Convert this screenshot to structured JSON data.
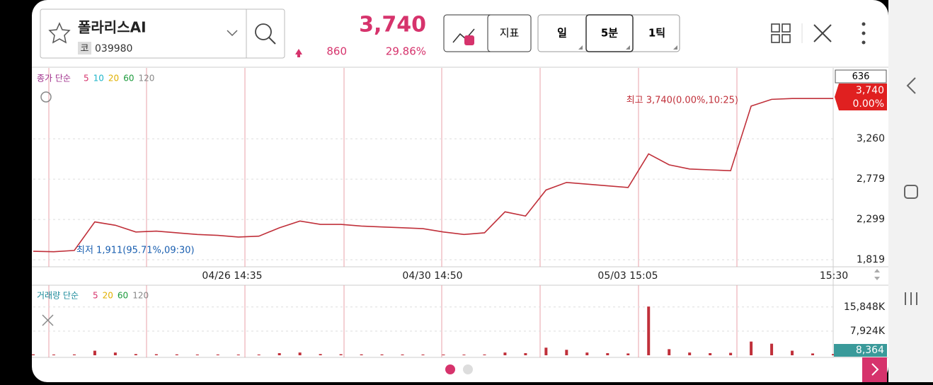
{
  "header": {
    "name": "폴라리스AI",
    "badge": "코",
    "code": "039980",
    "price": "3,740",
    "change": "860",
    "change_pct": "29.86%",
    "buttons": [
      "지표"
    ],
    "periods": [
      "일",
      "5분",
      "1틱"
    ]
  },
  "chart_data": {
    "type": "line",
    "legend_prefix": "종가 단순",
    "legend": [
      {
        "name": "5",
        "color": "#d6336c"
      },
      {
        "name": "10",
        "color": "#1fb5c9"
      },
      {
        "name": "20",
        "color": "#e0b000"
      },
      {
        "name": "60",
        "color": "#1a9a3a"
      },
      {
        "name": "120",
        "color": "#888888"
      }
    ],
    "values": [
      1920,
      1915,
      1930,
      2270,
      2230,
      2150,
      2160,
      2140,
      2120,
      2110,
      2090,
      2100,
      2200,
      2280,
      2240,
      2240,
      2220,
      2210,
      2200,
      2190,
      2150,
      2120,
      2140,
      2390,
      2340,
      2650,
      2740,
      2720,
      2700,
      2680,
      3080,
      2950,
      2900,
      2890,
      2880,
      3650,
      3730,
      3740,
      3740,
      3740
    ],
    "color": "#c0303a",
    "ylim": [
      1735,
      4104
    ],
    "yticks": [
      {
        "value": 3260,
        "label": "3,260"
      },
      {
        "value": 2779,
        "label": "2,779"
      },
      {
        "value": 2299,
        "label": "2,299"
      },
      {
        "value": 1819,
        "label": "1,819"
      }
    ],
    "x_labels": [
      "04/26 14:35",
      "04/30 14:50",
      "05/03 15:05",
      "15:30"
    ],
    "top_label": "636",
    "last_price": "3,740",
    "last_pct": "0.00%",
    "high_note": "최고 3,740(0.00%,10:25)",
    "low_note": "최저 1,911(95.71%,09:30)"
  },
  "volume_chart": {
    "type": "bar",
    "legend_prefix": "거래량 단순",
    "legend": [
      {
        "name": "5",
        "color": "#d6336c"
      },
      {
        "name": "20",
        "color": "#e0b000"
      },
      {
        "name": "60",
        "color": "#1a9a3a"
      },
      {
        "name": "120",
        "color": "#888888"
      }
    ],
    "values": [
      300,
      250,
      280,
      1500,
      900,
      400,
      350,
      300,
      250,
      260,
      240,
      250,
      700,
      900,
      400,
      350,
      300,
      280,
      260,
      250,
      240,
      230,
      260,
      900,
      700,
      2500,
      1800,
      900,
      700,
      600,
      16000,
      2000,
      900,
      700,
      800,
      4500,
      3800,
      1500,
      600,
      400
    ],
    "color": "#c0303a",
    "ylim": [
      0,
      23000
    ],
    "yticks": [
      {
        "value": 15848,
        "label": "15,848K"
      },
      {
        "value": 7924,
        "label": "7,924K"
      }
    ],
    "last_label": "8,364"
  }
}
